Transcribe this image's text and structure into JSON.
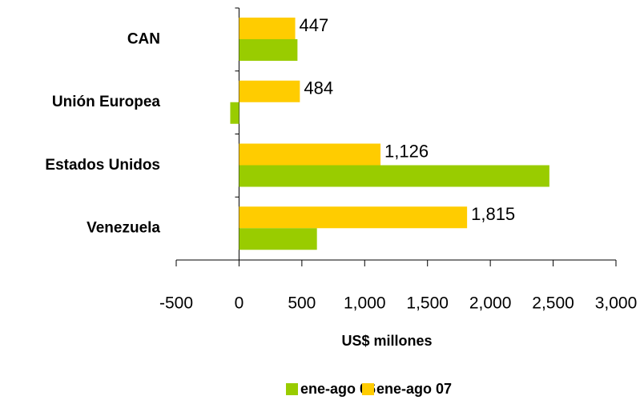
{
  "chart_data": {
    "type": "hbar",
    "categories": [
      "CAN",
      "Unión Europea",
      "Estados Unidos",
      "Venezuela"
    ],
    "series": [
      {
        "name": "ene-ago 06",
        "color": "#99cc00",
        "values": [
          465,
          -70,
          2470,
          620
        ]
      },
      {
        "name": "ene-ago 07",
        "color": "#ffcc00",
        "values": [
          447,
          484,
          1126,
          1815
        ],
        "value_labels": [
          "447",
          "484",
          "1,126",
          "1,815"
        ]
      }
    ],
    "xlabel": "US$ millones",
    "xlim": [
      -500,
      3000
    ],
    "xticks": [
      -500,
      0,
      500,
      {
        "value": 1000,
        "label": "1,000"
      },
      {
        "value": 1500,
        "label": "1,500"
      },
      {
        "value": 2000,
        "label": "2,000"
      },
      {
        "value": 2500,
        "label": "2,500"
      },
      {
        "value": 3000,
        "label": "3,000"
      }
    ],
    "legend": "bottom"
  }
}
